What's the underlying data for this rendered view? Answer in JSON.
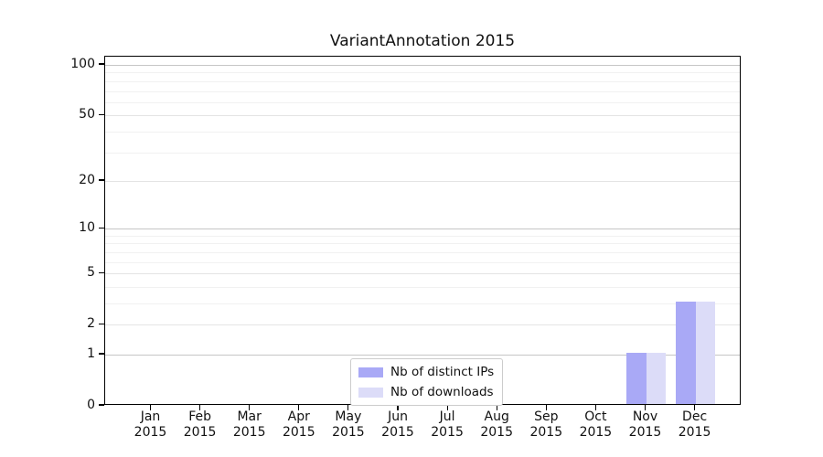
{
  "chart_data": {
    "type": "bar",
    "title": "VariantAnnotation 2015",
    "categories": [
      "Jan",
      "Feb",
      "Mar",
      "Apr",
      "May",
      "Jun",
      "Jul",
      "Aug",
      "Sep",
      "Oct",
      "Nov",
      "Dec"
    ],
    "year_label": "2015",
    "series": [
      {
        "name": "Nb of distinct IPs",
        "color": "#a9a9f6",
        "values": [
          0,
          0,
          0,
          0,
          0,
          0,
          0,
          0,
          0,
          0,
          1,
          3
        ]
      },
      {
        "name": "Nb of downloads",
        "color": "#dcdcf8",
        "values": [
          0,
          0,
          0,
          0,
          0,
          0,
          0,
          0,
          0,
          0,
          1,
          3
        ]
      }
    ],
    "yscale": "log1p",
    "ylim": [
      0,
      112
    ],
    "yticks": [
      0,
      1,
      2,
      5,
      10,
      20,
      50,
      100
    ],
    "minor_yticks": [
      3,
      4,
      6,
      7,
      8,
      9,
      30,
      40,
      60,
      70,
      80,
      90
    ],
    "grid": true,
    "legend_position": "lower center",
    "colors": {
      "grid_pow10": "#c6c6c6",
      "grid_major": "#e4e4e4",
      "grid_minor": "#f1f1f1",
      "spine": "#000000"
    }
  }
}
